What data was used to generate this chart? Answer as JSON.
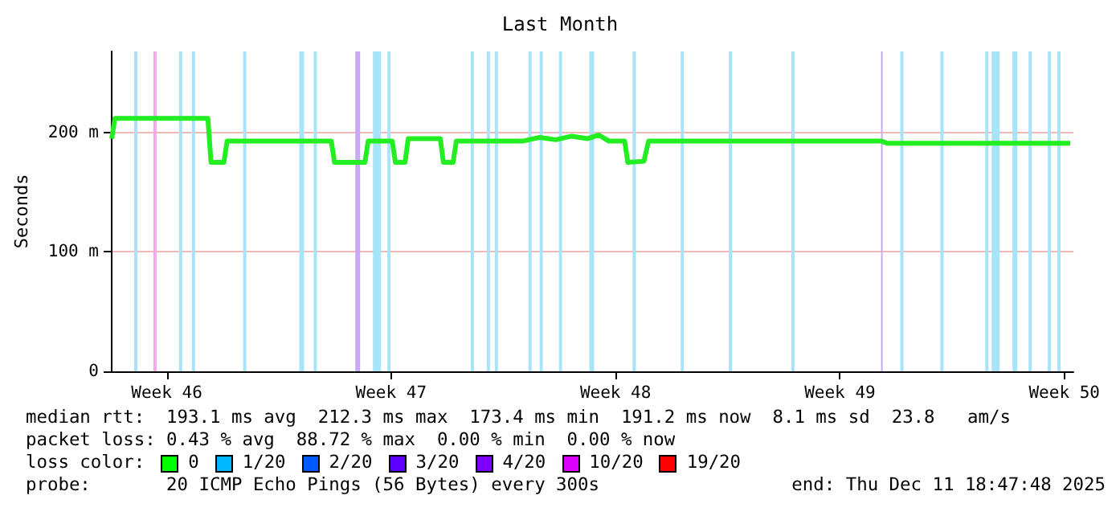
{
  "chart_data": {
    "type": "line",
    "title": "Last Month",
    "ylabel": "Seconds",
    "x": [
      "2025-11-11T18:47",
      "2025-11-11T21:11",
      "2025-11-14T18:47",
      "2025-11-14T21:11",
      "2025-11-15T06:47",
      "2025-11-15T09:11",
      "2025-11-18T15:11",
      "2025-11-18T17:35",
      "2025-11-19T16:23",
      "2025-11-19T18:47",
      "2025-11-20T12:47",
      "2025-11-20T15:11",
      "2025-11-20T22:23",
      "2025-11-21T00:47",
      "2025-11-22T00:47",
      "2025-11-22T03:11",
      "2025-11-22T10:23",
      "2025-11-22T12:47",
      "2025-11-24T15:11",
      "2025-11-25T03:11",
      "2025-11-25T15:11",
      "2025-11-26T03:11",
      "2025-11-26T15:11",
      "2025-11-26T23:35",
      "2025-11-27T06:47",
      "2025-11-27T18:47",
      "2025-11-27T21:11",
      "2025-11-28T09:11",
      "2025-11-28T12:47",
      "2025-12-05T18:47",
      "2025-12-05T23:35",
      "2025-12-11T16:23"
    ],
    "series": [
      {
        "color": "#22ee22",
        "values": [
          195,
          212,
          212,
          175,
          175,
          193,
          193,
          175,
          175,
          193,
          193,
          175,
          175,
          195,
          195,
          175,
          175,
          193,
          193,
          196,
          194,
          197,
          195,
          198,
          193,
          193,
          175,
          176,
          193,
          193,
          191,
          191
        ]
      }
    ],
    "xlim": [
      "2025-11-11T18:47",
      "2025-12-11T18:47"
    ],
    "xticks": [
      {
        "value": "2025-11-13T12:00",
        "label": "Week 46"
      },
      {
        "value": "2025-11-20T12:00",
        "label": "Week 47"
      },
      {
        "value": "2025-11-27T12:00",
        "label": "Week 48"
      },
      {
        "value": "2025-12-04T12:00",
        "label": "Week 49"
      },
      {
        "value": "2025-12-11T12:00",
        "label": "Week 50"
      }
    ],
    "ylim": [
      0,
      268
    ],
    "yticks": [
      {
        "value": 0,
        "label": "0"
      },
      {
        "value": 100,
        "label": "100 m"
      },
      {
        "value": 200,
        "label": "200 m"
      }
    ],
    "grid": "y",
    "marker": "none",
    "line_style": "solid",
    "bands": [
      {
        "axis": "x",
        "from": "2025-11-12T11:35",
        "to": "2025-11-12T13:59",
        "color": "#a8e4f8"
      },
      {
        "axis": "x",
        "from": "2025-11-13T01:59",
        "to": "2025-11-13T04:23",
        "color": "#f8a8e8"
      },
      {
        "axis": "x",
        "from": "2025-11-13T21:11",
        "to": "2025-11-13T23:35",
        "color": "#a8e4f8"
      },
      {
        "axis": "x",
        "from": "2025-11-14T06:47",
        "to": "2025-11-14T09:11",
        "color": "#a8e4f8"
      },
      {
        "axis": "x",
        "from": "2025-11-15T21:11",
        "to": "2025-11-15T23:35",
        "color": "#a8e4f8"
      },
      {
        "axis": "x",
        "from": "2025-11-17T15:11",
        "to": "2025-11-17T18:47",
        "color": "#a8e4f8"
      },
      {
        "axis": "x",
        "from": "2025-11-18T01:59",
        "to": "2025-11-18T04:23",
        "color": "#a8e4f8"
      },
      {
        "axis": "x",
        "from": "2025-11-19T09:11",
        "to": "2025-11-19T12:47",
        "color": "#c8a8f8"
      },
      {
        "axis": "x",
        "from": "2025-11-19T22:23",
        "to": "2025-11-20T04:23",
        "color": "#a8e4f8"
      },
      {
        "axis": "x",
        "from": "2025-11-20T09:11",
        "to": "2025-11-20T11:35",
        "color": "#a8e4f8"
      },
      {
        "axis": "x",
        "from": "2025-11-22T23:35",
        "to": "2025-11-23T01:59",
        "color": "#a8e4f8"
      },
      {
        "axis": "x",
        "from": "2025-11-23T11:35",
        "to": "2025-11-23T13:59",
        "color": "#a8e4f8"
      },
      {
        "axis": "x",
        "from": "2025-11-23T17:35",
        "to": "2025-11-23T19:59",
        "color": "#a8e4f8"
      },
      {
        "axis": "x",
        "from": "2025-11-24T18:47",
        "to": "2025-11-24T21:11",
        "color": "#a8e4f8"
      },
      {
        "axis": "x",
        "from": "2025-11-25T03:11",
        "to": "2025-11-25T05:35",
        "color": "#a8e4f8"
      },
      {
        "axis": "x",
        "from": "2025-11-25T17:35",
        "to": "2025-11-25T19:59",
        "color": "#a8e4f8"
      },
      {
        "axis": "x",
        "from": "2025-11-26T16:23",
        "to": "2025-11-26T19:59",
        "color": "#a8e4f8"
      },
      {
        "axis": "x",
        "from": "2025-11-28T00:47",
        "to": "2025-11-28T03:11",
        "color": "#a8e4f8"
      },
      {
        "axis": "x",
        "from": "2025-11-29T12:47",
        "to": "2025-11-29T15:11",
        "color": "#a8e4f8"
      },
      {
        "axis": "x",
        "from": "2025-12-01T00:47",
        "to": "2025-12-01T03:11",
        "color": "#a8e4f8"
      },
      {
        "axis": "x",
        "from": "2025-12-02T23:35",
        "to": "2025-12-03T01:59",
        "color": "#a8e4f8"
      },
      {
        "axis": "x",
        "from": "2025-12-05T18:47",
        "to": "2025-12-05T19:59",
        "color": "#c8a8f8"
      },
      {
        "axis": "x",
        "from": "2025-12-06T09:11",
        "to": "2025-12-06T11:35",
        "color": "#a8e4f8"
      },
      {
        "axis": "x",
        "from": "2025-12-07T15:11",
        "to": "2025-12-07T17:35",
        "color": "#a8e4f8"
      },
      {
        "axis": "x",
        "from": "2025-12-09T00:47",
        "to": "2025-12-09T03:11",
        "color": "#a8e4f8"
      },
      {
        "axis": "x",
        "from": "2025-12-09T05:35",
        "to": "2025-12-09T11:35",
        "color": "#a8e4f8"
      },
      {
        "axis": "x",
        "from": "2025-12-09T21:11",
        "to": "2025-12-10T00:47",
        "color": "#a8e4f8"
      },
      {
        "axis": "x",
        "from": "2025-12-10T09:11",
        "to": "2025-12-10T11:35",
        "color": "#a8e4f8"
      },
      {
        "axis": "x",
        "from": "2025-12-10T23:35",
        "to": "2025-12-11T01:59",
        "color": "#a8e4f8"
      },
      {
        "axis": "x",
        "from": "2025-12-11T06:47",
        "to": "2025-12-11T09:11",
        "color": "#a8e4f8"
      }
    ],
    "annotations": [
      "median rtt:  193.1 ms avg  212.3 ms max  173.4 ms min  191.2 ms now  8.1 ms sd  23.8   am/s",
      "packet loss: 0.43 % avg  88.72 % max  0.00 % min  0.00 % now",
      "loss color:",
      "0",
      "1/20",
      "2/20",
      "3/20",
      "4/20",
      "10/20",
      "19/20",
      "probe:       20 ICMP Echo Pings (56 Bytes) every 300s",
      "end: Thu Dec 11 18:47:48 2025"
    ]
  }
}
